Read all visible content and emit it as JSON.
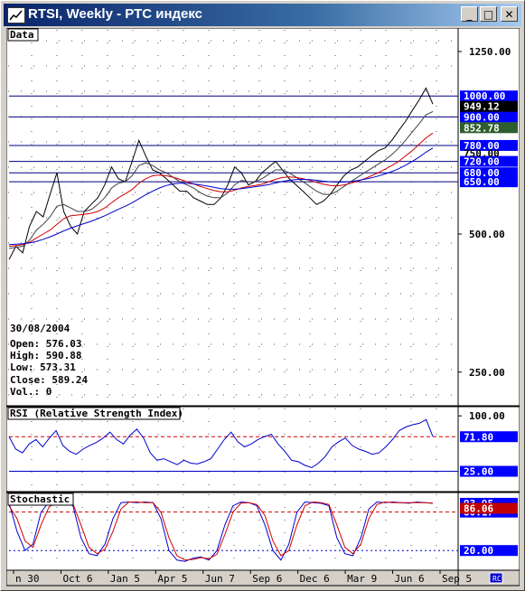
{
  "window": {
    "title": "RTSI, Weekly - РТС индекс",
    "buttons": {
      "minimize": "_",
      "maximize": "□",
      "close": "✕"
    },
    "corner_icon": "chart-corner-icon"
  },
  "colors": {
    "plot_bg": "#ffffff",
    "price": "#000000",
    "ma_fast": "#404040",
    "ma_red": "#d00000",
    "ma_blue": "#0000cc",
    "level_line": "#00007f",
    "level_bg": "#0000ff",
    "rsi_line": "#0000cc",
    "stoch_k": "#0000cc",
    "stoch_d": "#d00000",
    "ref_red": "#d00000",
    "ref_blue": "#0000cc",
    "axis_panel": "#ffffff"
  },
  "chart_data": [
    {
      "type": "line",
      "panel_label": "Data",
      "y_scale": "log",
      "ylim": [
        215,
        1320
      ],
      "y_ticks": [
        {
          "value": 1250,
          "label": "1250.00"
        },
        {
          "value": 500,
          "label": "500.00"
        },
        {
          "value": 250,
          "label": "250.00"
        }
      ],
      "h_levels": [
        {
          "value": 1000,
          "label": "1000.00"
        },
        {
          "value": 900,
          "label": "900.00"
        },
        {
          "value": 780,
          "label": "780.00"
        },
        {
          "value": 720,
          "label": "720.00"
        },
        {
          "value": 680,
          "label": "680.00"
        },
        {
          "value": 650,
          "label": "650.00"
        }
      ],
      "markers": [
        {
          "value": 949.12,
          "label": "949.12",
          "style": "black"
        },
        {
          "value": 852.78,
          "label": "852.78",
          "style": "green"
        },
        {
          "value": 750,
          "label": "750.00",
          "style": "plain"
        }
      ],
      "x_labels": [
        "n 30",
        "Oct 6",
        "Jan 5",
        "Apr 5",
        "Jun 7",
        "Sep 6",
        "Dec 6",
        "Mar 9",
        "Jun 6",
        "Sep 5"
      ],
      "series": [
        {
          "role": "price",
          "values": [
            440,
            470,
            455,
            520,
            560,
            545,
            610,
            680,
            560,
            520,
            500,
            560,
            580,
            600,
            640,
            700,
            660,
            650,
            720,
            800,
            740,
            690,
            680,
            660,
            640,
            620,
            620,
            600,
            590,
            580,
            580,
            600,
            640,
            700,
            680,
            640,
            650,
            680,
            700,
            720,
            690,
            660,
            640,
            620,
            600,
            580,
            590,
            610,
            640,
            670,
            690,
            700,
            720,
            740,
            760,
            770,
            800,
            840,
            880,
            930,
            980,
            1040,
            960
          ]
        },
        {
          "role": "ma_fast",
          "values": [
            465,
            468,
            470,
            485,
            510,
            525,
            545,
            575,
            580,
            570,
            560,
            560,
            565,
            580,
            600,
            630,
            645,
            650,
            670,
            705,
            715,
            705,
            690,
            680,
            665,
            650,
            640,
            630,
            615,
            605,
            600,
            600,
            615,
            640,
            655,
            650,
            650,
            660,
            675,
            690,
            690,
            680,
            665,
            650,
            635,
            620,
            610,
            610,
            620,
            635,
            650,
            665,
            680,
            695,
            710,
            725,
            745,
            770,
            800,
            835,
            870,
            910,
            925
          ]
        },
        {
          "role": "ma_red",
          "values": [
            470,
            472,
            474,
            480,
            490,
            500,
            510,
            525,
            540,
            548,
            550,
            552,
            555,
            560,
            570,
            585,
            600,
            612,
            625,
            645,
            660,
            670,
            672,
            670,
            665,
            658,
            650,
            643,
            635,
            628,
            622,
            618,
            618,
            623,
            630,
            635,
            638,
            642,
            650,
            658,
            664,
            666,
            664,
            660,
            655,
            648,
            642,
            638,
            637,
            640,
            645,
            652,
            660,
            670,
            680,
            692,
            705,
            720,
            740,
            760,
            785,
            810,
            830
          ]
        },
        {
          "role": "ma_blue",
          "values": [
            474,
            475,
            476,
            478,
            482,
            487,
            493,
            500,
            508,
            515,
            521,
            527,
            533,
            540,
            548,
            557,
            566,
            575,
            585,
            597,
            609,
            620,
            630,
            638,
            643,
            645,
            645,
            643,
            640,
            636,
            632,
            628,
            626,
            626,
            628,
            631,
            634,
            637,
            641,
            646,
            651,
            655,
            657,
            658,
            657,
            655,
            652,
            650,
            649,
            649,
            651,
            654,
            658,
            663,
            669,
            676,
            684,
            694,
            706,
            720,
            736,
            754,
            770
          ]
        }
      ]
    },
    {
      "type": "line",
      "panel_label": "RSI (Relative Strength Index)",
      "ylim": [
        0,
        110
      ],
      "y_ticks": [
        {
          "value": 100,
          "label": "100.00"
        }
      ],
      "h_levels": [
        {
          "value": 71.8,
          "label": "71.80",
          "style": "red-dash"
        },
        {
          "value": 25,
          "label": "25.00",
          "style": "blue-solid"
        }
      ],
      "series": [
        {
          "role": "rsi",
          "values": [
            72,
            55,
            50,
            62,
            68,
            58,
            70,
            80,
            60,
            52,
            48,
            55,
            60,
            64,
            70,
            78,
            68,
            62,
            74,
            82,
            70,
            50,
            40,
            42,
            38,
            34,
            40,
            36,
            35,
            38,
            42,
            55,
            68,
            78,
            65,
            58,
            62,
            68,
            72,
            75,
            62,
            52,
            40,
            38,
            33,
            30,
            36,
            45,
            58,
            65,
            70,
            60,
            55,
            52,
            48,
            50,
            58,
            68,
            80,
            85,
            88,
            90,
            95,
            72
          ]
        }
      ]
    },
    {
      "type": "line",
      "panel_label": "Stochastic",
      "ylim": [
        -8,
        108
      ],
      "h_levels": [
        {
          "value": 80.17,
          "label": "80.17",
          "style": "red-dash"
        },
        {
          "value": 20,
          "label": "20.00",
          "style": "blue-dot"
        }
      ],
      "markers": [
        {
          "value": 93.95,
          "label": "93.95",
          "style": "blue"
        },
        {
          "value": 86.06,
          "label": "86.06",
          "style": "red"
        }
      ],
      "series": [
        {
          "role": "k",
          "values": [
            95,
            50,
            20,
            30,
            80,
            96,
            96,
            95,
            90,
            40,
            15,
            12,
            30,
            70,
            95,
            96,
            95,
            96,
            95,
            70,
            20,
            5,
            3,
            8,
            10,
            5,
            20,
            60,
            90,
            96,
            95,
            90,
            60,
            20,
            5,
            30,
            80,
            96,
            95,
            94,
            90,
            40,
            15,
            12,
            40,
            85,
            96,
            95,
            96,
            95,
            94,
            96,
            95,
            94
          ]
        },
        {
          "role": "d",
          "values": [
            90,
            70,
            35,
            25,
            60,
            88,
            96,
            96,
            93,
            60,
            25,
            15,
            22,
            50,
            85,
            96,
            96,
            95,
            95,
            80,
            40,
            12,
            5,
            6,
            9,
            7,
            14,
            45,
            80,
            94,
            95,
            92,
            75,
            35,
            12,
            20,
            60,
            90,
            96,
            95,
            92,
            60,
            25,
            15,
            30,
            70,
            92,
            96,
            95,
            95,
            95,
            95,
            95,
            94
          ]
        }
      ]
    }
  ],
  "price_info": {
    "date": "30/08/2004",
    "open": "Open: 576.03",
    "high": "High: 590.88",
    "low": "Low: 573.31",
    "close": "Close: 589.24",
    "volume": "Vol.: 0"
  }
}
